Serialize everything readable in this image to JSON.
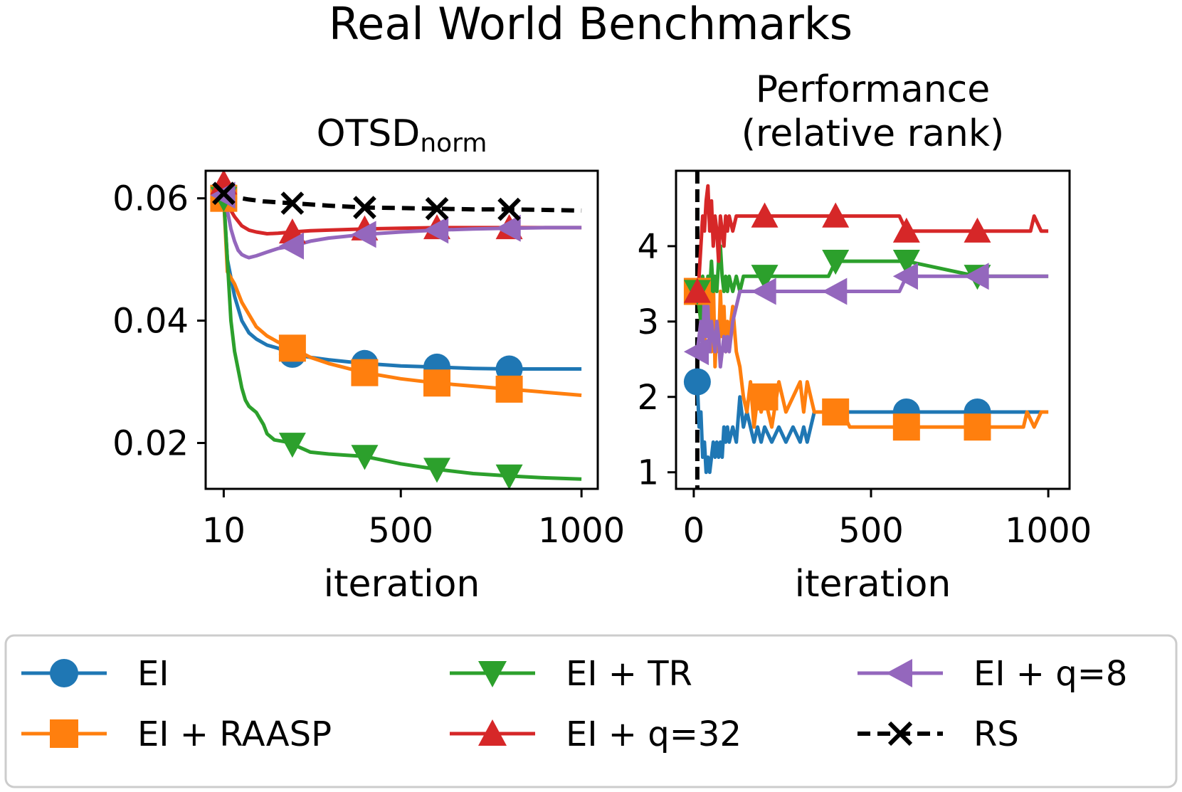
{
  "chart_data": {
    "type": "line",
    "title": "Real World Benchmarks",
    "colors": {
      "EI": "#1f77b4",
      "EI + RAASP": "#ff7f0e",
      "EI + TR": "#2ca02c",
      "EI + q=32": "#d62728",
      "EI + q=8": "#9467bd",
      "RS": "#000000"
    },
    "markers": {
      "EI": "circle",
      "EI + RAASP": "square",
      "EI + TR": "triangle-down",
      "EI + q=32": "triangle-up",
      "EI + q=8": "triangle-left",
      "RS": "x"
    },
    "legend": {
      "position": "bottom",
      "entries": [
        "EI",
        "EI + RAASP",
        "EI + TR",
        "EI + q=32",
        "EI + q=8",
        "RS"
      ]
    },
    "panels": [
      {
        "title_main": "OTSD",
        "title_sub": "norm",
        "xlabel": "iteration",
        "ylabel": "",
        "xlim": [
          -40,
          1045
        ],
        "ylim": [
          0.0125,
          0.0645
        ],
        "xticks": [
          10,
          500,
          1000
        ],
        "xtick_labels": [
          "10",
          "500",
          "1000"
        ],
        "yticks": [
          0.02,
          0.04,
          0.06
        ],
        "ytick_labels": [
          "0.02",
          "0.04",
          "0.06"
        ],
        "grid": false,
        "series": [
          {
            "name": "EI",
            "x": [
              10,
              20,
              40,
              60,
              80,
              100,
              130,
              160,
              200,
              250,
              300,
              400,
              500,
              600,
              700,
              800,
              900,
              1000
            ],
            "y": [
              0.06,
              0.05,
              0.044,
              0.04,
              0.038,
              0.037,
              0.036,
              0.0355,
              0.0345,
              0.034,
              0.0336,
              0.033,
              0.0326,
              0.0324,
              0.0322,
              0.0321,
              0.0321,
              0.0321
            ],
            "marker_x": [
              10,
              200,
              400,
              600,
              800
            ]
          },
          {
            "name": "EI + RAASP",
            "x": [
              10,
              20,
              40,
              60,
              80,
              100,
              130,
              160,
              200,
              250,
              300,
              400,
              500,
              600,
              700,
              800,
              900,
              1000
            ],
            "y": [
              0.06,
              0.048,
              0.046,
              0.043,
              0.041,
              0.039,
              0.0375,
              0.0365,
              0.0355,
              0.034,
              0.033,
              0.0315,
              0.0305,
              0.0298,
              0.0293,
              0.0288,
              0.0283,
              0.0278
            ],
            "marker_x": [
              10,
              200,
              400,
              600,
              800
            ]
          },
          {
            "name": "EI + TR",
            "x": [
              10,
              20,
              30,
              40,
              50,
              60,
              70,
              80,
              90,
              100,
              110,
              120,
              130,
              150,
              180,
              200,
              250,
              300,
              350,
              400,
              500,
              600,
              700,
              800,
              900,
              1000
            ],
            "y": [
              0.06,
              0.05,
              0.04,
              0.035,
              0.032,
              0.029,
              0.027,
              0.026,
              0.0255,
              0.025,
              0.024,
              0.023,
              0.0215,
              0.0205,
              0.0202,
              0.0198,
              0.0185,
              0.0182,
              0.018,
              0.0178,
              0.0166,
              0.0157,
              0.015,
              0.0146,
              0.0143,
              0.0141
            ],
            "marker_x": [
              10,
              200,
              400,
              600,
              800
            ]
          },
          {
            "name": "EI + q=32",
            "x": [
              10,
              20,
              30,
              40,
              60,
              80,
              100,
              130,
              160,
              200,
              250,
              300,
              400,
              500,
              600,
              700,
              800,
              900,
              1000
            ],
            "y": [
              0.0625,
              0.06,
              0.058,
              0.057,
              0.0555,
              0.0548,
              0.0545,
              0.0542,
              0.0543,
              0.0545,
              0.0547,
              0.0548,
              0.055,
              0.0551,
              0.0552,
              0.0552,
              0.0552,
              0.0552,
              0.0552
            ],
            "marker_x": [
              10,
              200,
              400,
              600,
              800
            ]
          },
          {
            "name": "EI + q=8",
            "x": [
              10,
              20,
              30,
              40,
              50,
              60,
              70,
              80,
              100,
              130,
              160,
              200,
              250,
              300,
              400,
              500,
              600,
              700,
              800,
              900,
              1000
            ],
            "y": [
              0.0605,
              0.058,
              0.055,
              0.053,
              0.0515,
              0.0508,
              0.0505,
              0.0503,
              0.0506,
              0.0512,
              0.0518,
              0.0522,
              0.053,
              0.0535,
              0.0541,
              0.0545,
              0.0548,
              0.055,
              0.0551,
              0.0552,
              0.0552
            ],
            "marker_x": [
              10,
              200,
              400,
              600,
              800
            ]
          },
          {
            "name": "RS",
            "x": [
              10,
              40,
              80,
              120,
              200,
              300,
              400,
              500,
              600,
              700,
              800,
              900,
              1000
            ],
            "y": [
              0.0608,
              0.0602,
              0.0598,
              0.0595,
              0.0592,
              0.0588,
              0.0585,
              0.0584,
              0.0583,
              0.0582,
              0.0582,
              0.0581,
              0.058
            ],
            "marker_x": [
              10,
              200,
              400,
              600,
              800
            ]
          }
        ]
      },
      {
        "title_main": "Performance\n(relative rank)",
        "title_sub": "",
        "xlabel": "iteration",
        "ylabel": "",
        "xlim": [
          -50,
          1060
        ],
        "ylim": [
          0.78,
          5.0
        ],
        "xticks": [
          0,
          500,
          1000
        ],
        "xtick_labels": [
          "0",
          "500",
          "1000"
        ],
        "yticks": [
          1,
          2,
          3,
          4
        ],
        "ytick_labels": [
          "1",
          "2",
          "3",
          "4"
        ],
        "grid": false,
        "vline_x": 10,
        "series": [
          {
            "name": "EI",
            "x": [
              0,
              10,
              15,
              20,
              25,
              30,
              35,
              40,
              45,
              50,
              55,
              60,
              65,
              70,
              75,
              80,
              85,
              90,
              95,
              100,
              110,
              120,
              130,
              140,
              150,
              160,
              170,
              180,
              190,
              200,
              220,
              240,
              260,
              280,
              300,
              310,
              320,
              330,
              340,
              400,
              600,
              800,
              1000
            ],
            "y": [
              2.2,
              2.2,
              1.6,
              1.8,
              1.2,
              1.4,
              1.0,
              1.2,
              1.0,
              1.2,
              1.4,
              1.2,
              1.4,
              1.2,
              1.4,
              1.2,
              1.6,
              1.4,
              1.6,
              1.4,
              1.6,
              1.4,
              2.0,
              1.6,
              1.8,
              1.6,
              1.4,
              1.6,
              1.4,
              1.6,
              1.4,
              1.6,
              1.4,
              1.6,
              1.4,
              1.6,
              1.4,
              1.6,
              1.8,
              1.8,
              1.8,
              1.8,
              1.8
            ],
            "marker_x": [
              10,
              600,
              800
            ]
          },
          {
            "name": "EI + RAASP",
            "x": [
              0,
              10,
              20,
              25,
              30,
              35,
              40,
              45,
              50,
              55,
              60,
              65,
              70,
              75,
              80,
              85,
              90,
              95,
              100,
              110,
              120,
              130,
              140,
              150,
              160,
              170,
              180,
              190,
              200,
              220,
              240,
              260,
              280,
              300,
              310,
              320,
              330,
              340,
              380,
              420,
              440,
              600,
              800,
              930,
              940,
              960,
              980,
              1000
            ],
            "y": [
              3.4,
              3.4,
              3.0,
              3.4,
              2.6,
              3.2,
              2.8,
              3.4,
              2.6,
              3.6,
              2.4,
              3.0,
              2.6,
              3.4,
              2.8,
              3.2,
              2.6,
              3.0,
              2.8,
              3.2,
              2.6,
              2.4,
              2.0,
              1.8,
              2.2,
              1.6,
              2.0,
              1.8,
              2.0,
              1.6,
              2.2,
              1.8,
              2.0,
              2.2,
              1.8,
              2.2,
              2.0,
              1.8,
              1.8,
              1.8,
              1.6,
              1.6,
              1.6,
              1.6,
              1.8,
              1.6,
              1.8,
              1.8
            ],
            "marker_x": [
              10,
              200,
              400,
              600,
              800
            ]
          },
          {
            "name": "EI + TR",
            "x": [
              0,
              10,
              20,
              25,
              30,
              35,
              40,
              45,
              50,
              55,
              60,
              65,
              70,
              75,
              80,
              85,
              90,
              95,
              100,
              110,
              120,
              130,
              140,
              160,
              200,
              300,
              380,
              400,
              600,
              800,
              1000
            ],
            "y": [
              3.4,
              3.4,
              3.0,
              3.6,
              3.4,
              3.2,
              3.6,
              3.4,
              3.8,
              3.4,
              3.6,
              3.4,
              3.8,
              4.0,
              3.6,
              3.4,
              3.6,
              3.4,
              3.6,
              3.4,
              3.6,
              3.4,
              3.6,
              3.6,
              3.6,
              3.6,
              3.6,
              3.8,
              3.8,
              3.6,
              3.6
            ],
            "marker_x": [
              10,
              200,
              400,
              600,
              800
            ]
          },
          {
            "name": "EI + q=32",
            "x": [
              0,
              10,
              15,
              20,
              25,
              30,
              35,
              40,
              45,
              50,
              55,
              60,
              65,
              70,
              75,
              80,
              85,
              90,
              95,
              100,
              110,
              120,
              140,
              200,
              400,
              580,
              600,
              800,
              950,
              960,
              980,
              1000
            ],
            "y": [
              3.4,
              3.4,
              3.6,
              4.0,
              4.4,
              4.2,
              4.6,
              4.8,
              4.2,
              4.6,
              4.0,
              4.4,
              4.2,
              3.8,
              4.4,
              4.2,
              4.0,
              4.4,
              4.2,
              4.4,
              4.2,
              4.4,
              4.4,
              4.4,
              4.4,
              4.4,
              4.2,
              4.2,
              4.2,
              4.4,
              4.2,
              4.2
            ],
            "marker_x": [
              10,
              200,
              400,
              600,
              800
            ]
          },
          {
            "name": "EI + q=8",
            "x": [
              0,
              10,
              20,
              25,
              30,
              35,
              40,
              45,
              50,
              55,
              60,
              65,
              70,
              75,
              80,
              85,
              90,
              95,
              100,
              110,
              120,
              130,
              140,
              160,
              200,
              300,
              380,
              400,
              580,
              600,
              800,
              1000
            ],
            "y": [
              2.6,
              2.6,
              3.0,
              2.6,
              3.4,
              2.8,
              3.2,
              2.6,
              3.0,
              2.8,
              2.6,
              3.0,
              2.8,
              2.4,
              2.6,
              2.8,
              2.6,
              2.8,
              2.6,
              3.0,
              3.2,
              3.4,
              3.4,
              3.4,
              3.4,
              3.4,
              3.4,
              3.4,
              3.4,
              3.6,
              3.6,
              3.6
            ],
            "marker_x": [
              10,
              200,
              400,
              600,
              800
            ]
          }
        ]
      }
    ]
  }
}
